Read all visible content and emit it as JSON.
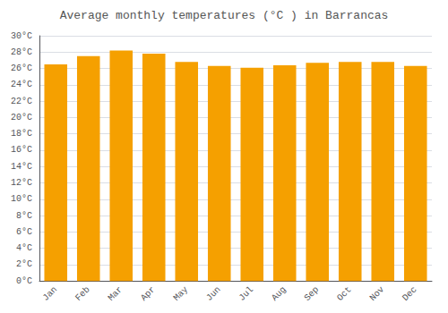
{
  "chart_data": {
    "type": "bar",
    "title": "Average monthly temperatures (°C ) in Barrancas",
    "categories": [
      "Jan",
      "Feb",
      "Mar",
      "Apr",
      "May",
      "Jun",
      "Jul",
      "Aug",
      "Sep",
      "Oct",
      "Nov",
      "Dec"
    ],
    "values": [
      26.5,
      27.5,
      28.2,
      27.8,
      26.8,
      26.3,
      26.1,
      26.4,
      26.7,
      26.8,
      26.8,
      26.3
    ],
    "color": "#F5A000",
    "ylim": [
      0,
      30
    ],
    "yticks": [
      {
        "value": 0,
        "label": "0°C"
      },
      {
        "value": 2,
        "label": "2°C"
      },
      {
        "value": 4,
        "label": "4°C"
      },
      {
        "value": 6,
        "label": "6°C"
      },
      {
        "value": 8,
        "label": "8°C"
      },
      {
        "value": 10,
        "label": "10°C"
      },
      {
        "value": 12,
        "label": "12°C"
      },
      {
        "value": 14,
        "label": "14°C"
      },
      {
        "value": 16,
        "label": "16°C"
      },
      {
        "value": 18,
        "label": "18°C"
      },
      {
        "value": 20,
        "label": "20°C"
      },
      {
        "value": 22,
        "label": "22°C"
      },
      {
        "value": 24,
        "label": "24°C"
      },
      {
        "value": 26,
        "label": "26°C"
      },
      {
        "value": 28,
        "label": "28°C"
      },
      {
        "value": 30,
        "label": "30°C"
      }
    ],
    "grid": true
  }
}
